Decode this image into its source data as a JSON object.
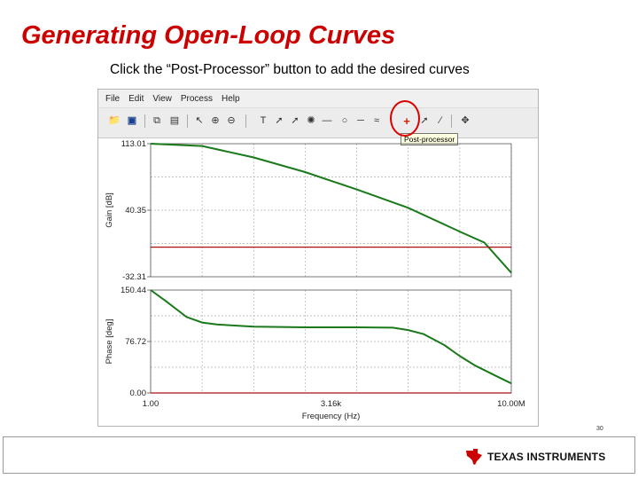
{
  "slide": {
    "title": "Generating Open-Loop Curves",
    "subtitle": "Click the “Post-Processor” button to add the desired curves",
    "slide_number": "30"
  },
  "app": {
    "menu": [
      "File",
      "Edit",
      "View",
      "Process",
      "Help"
    ],
    "toolbar_icons": [
      "open-folder-icon",
      "save-icon",
      "copy-icon",
      "paste-icon",
      "pointer-icon",
      "zoom-in-icon",
      "zoom-out-icon",
      "text-icon",
      "cursor-icon",
      "marker-icon",
      "line-icon",
      "circle-icon",
      "post-processor-icon",
      "arrow-icon",
      "pan-icon"
    ],
    "tooltip": "Post-processor",
    "highlight_color": "#dd0000"
  },
  "footer": {
    "logo_text": "TEXAS INSTRUMENTS",
    "logo_color": "#cc0000"
  },
  "chart_data": [
    {
      "type": "line",
      "title": "",
      "ylabel": "Gain [dB]",
      "xlabel": "",
      "x_scale": "log",
      "xlim": [
        1,
        10000000
      ],
      "ylim": [
        -32.31,
        113.01
      ],
      "y_ticks": [
        "113.01",
        "40.35",
        "-32.31"
      ],
      "grid": true,
      "series": [
        {
          "color": "#1a7a1a",
          "x": [
            1,
            10,
            100,
            1000,
            10000,
            100000,
            1000000,
            3000000,
            10000000
          ],
          "y": [
            113.01,
            110.5,
            98,
            82,
            63,
            43,
            17,
            5,
            -28
          ]
        },
        {
          "color": "#aa1111",
          "x": [
            1,
            10000000
          ],
          "y": [
            0,
            0
          ]
        }
      ]
    },
    {
      "type": "line",
      "title": "",
      "ylabel": "Phase [deg]",
      "xlabel": "Frequency (Hz)",
      "x_scale": "log",
      "xlim": [
        1,
        10000000
      ],
      "ylim": [
        0,
        150.44
      ],
      "y_ticks": [
        "150.44",
        "76.72",
        "0.00"
      ],
      "x_ticks": [
        "1.00",
        "3.16k",
        "10.00M"
      ],
      "grid": true,
      "series": [
        {
          "color": "#1a7a1a",
          "x": [
            1,
            2,
            5,
            10,
            20,
            100,
            1000,
            10000,
            50000,
            100000,
            200000,
            500000,
            1000000,
            2000000,
            5000000,
            10000000
          ],
          "y": [
            150.44,
            134,
            111,
            103,
            100,
            97,
            96,
            96,
            95.5,
            92,
            86,
            70,
            54,
            40,
            25,
            14
          ]
        },
        {
          "color": "#aa1111",
          "x": [
            1,
            10000000
          ],
          "y": [
            0,
            0
          ]
        }
      ]
    }
  ]
}
